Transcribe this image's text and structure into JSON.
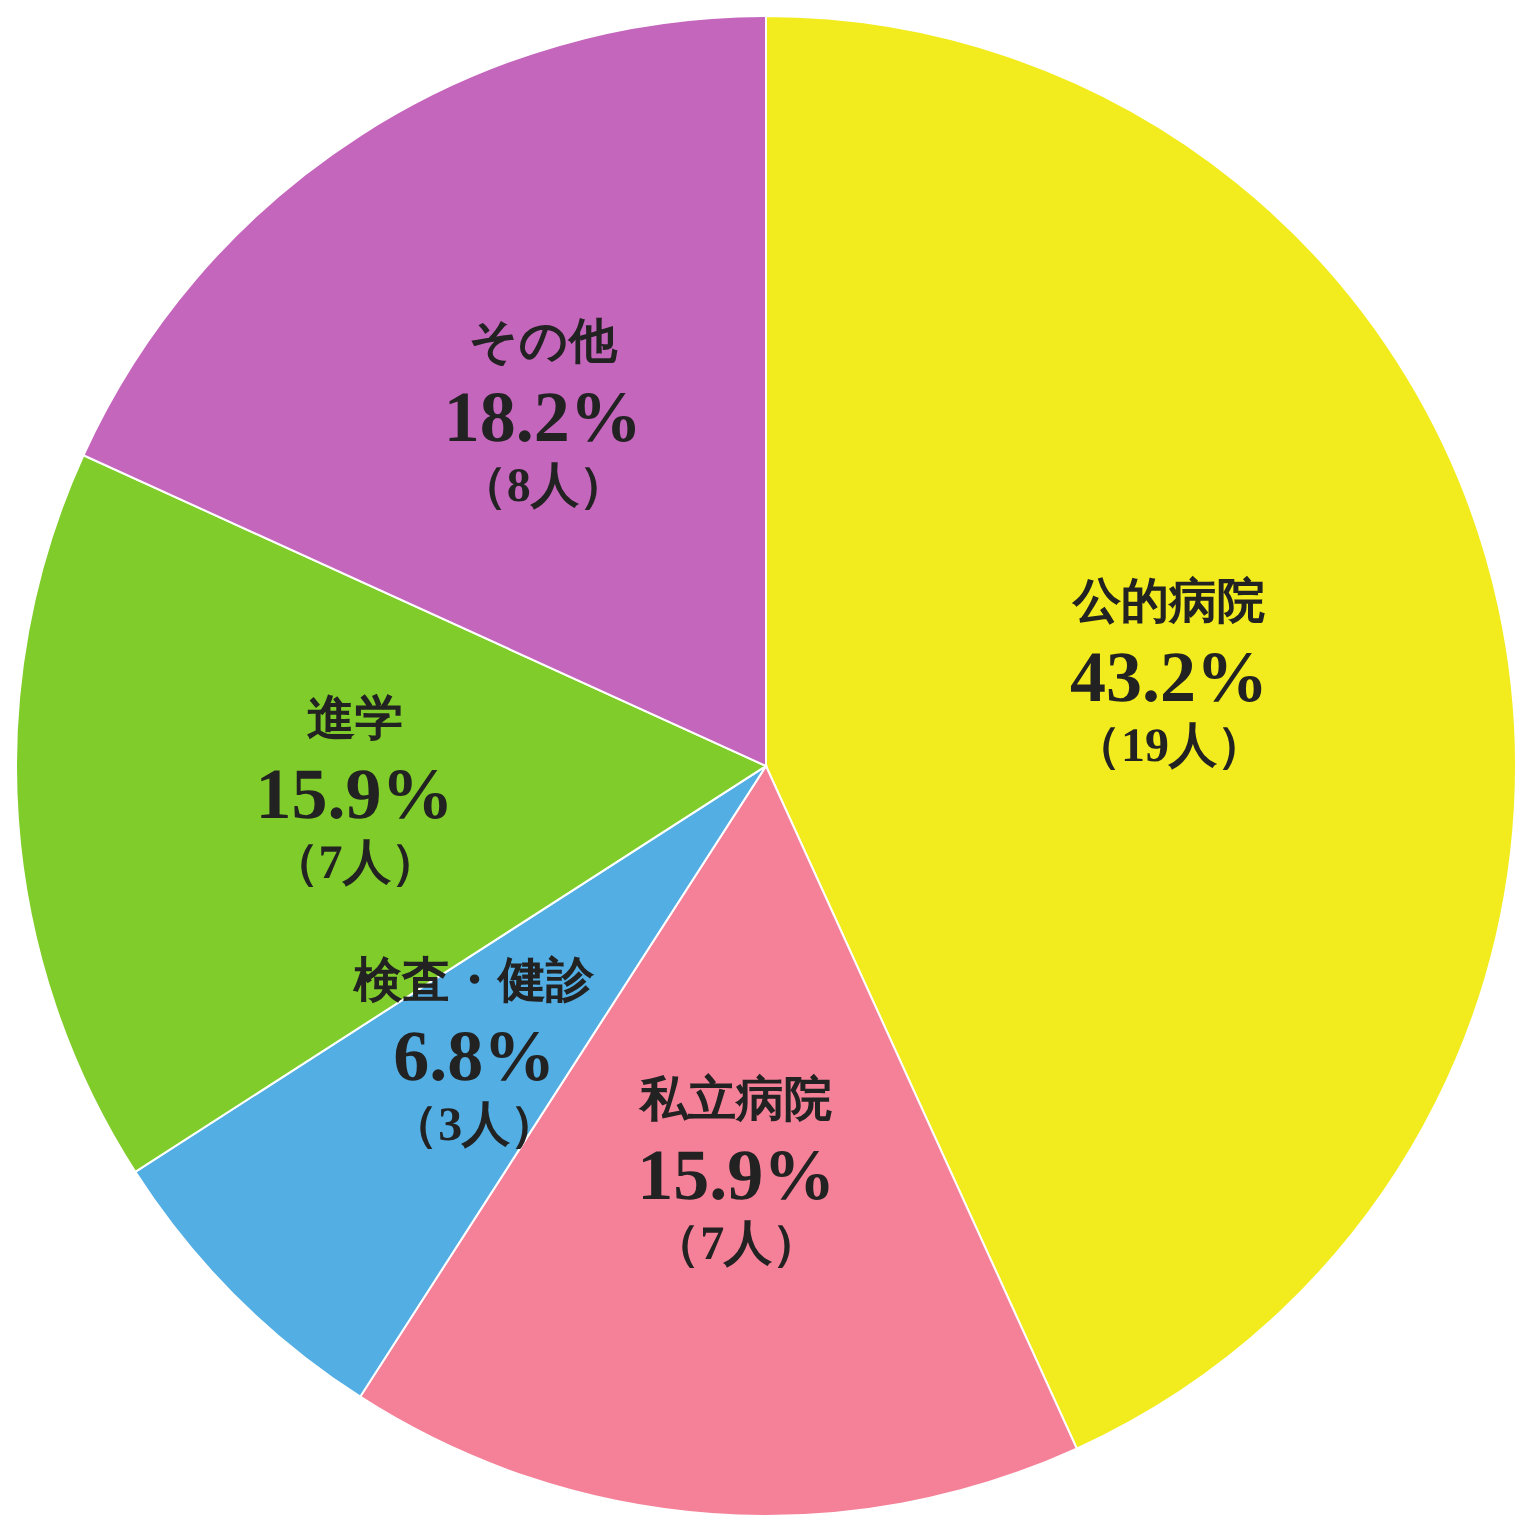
{
  "chart_data": {
    "type": "pie",
    "categories": [
      "公的病院",
      "私立病院",
      "検査・健診",
      "進学",
      "その他"
    ],
    "values": [
      43.2,
      15.9,
      6.8,
      15.9,
      18.2
    ],
    "colors": [
      "#f2ec1e",
      "#f58199",
      "#52aee3",
      "#80cc2a",
      "#c566bd"
    ],
    "value_labels": [
      "43.2%\n（19人）",
      "15.9%\n（7人）",
      "6.8%\n（3人）",
      "15.9%\n（7人）",
      "18.2%\n（8人）"
    ],
    "legend": false
  }
}
